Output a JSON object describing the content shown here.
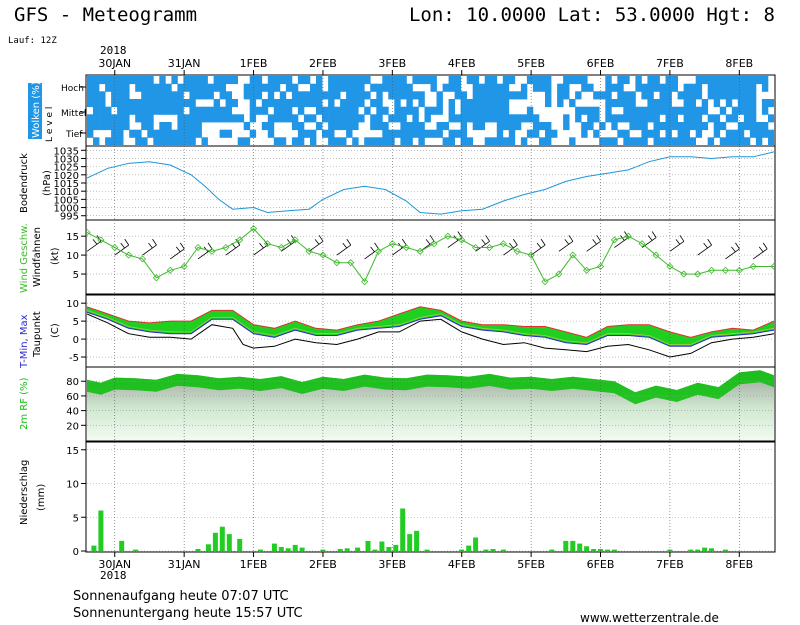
{
  "header": {
    "title": "GFS - Meteogramm",
    "coords": "Lon: 10.0000 Lat: 53.0000 Hgt: 8",
    "run": "Lauf: 12Z"
  },
  "footer": {
    "sunrise": "Sonnenaufgang heute 07:07 UTC",
    "sunset": "Sonnenuntergang heute 15:57 UTC",
    "website": "www.wetterzentrale.de"
  },
  "colors": {
    "cloud": "#2196e6",
    "pressure": "#1e96d8",
    "wind": "#3dbb2a",
    "temp_max": "#e03030",
    "temp_min": "#2b2bd0",
    "temp_fill": "#20d020",
    "humidity": "#10c010",
    "precip": "#22cc22",
    "precip_conv": "#dd4040"
  },
  "chart_data": {
    "x_axis": {
      "labels": [
        "30JAN",
        "31JAN",
        "1FEB",
        "2FEB",
        "3FEB",
        "4FEB",
        "5FEB",
        "6FEB",
        "7FEB",
        "8FEB"
      ],
      "year": "2018",
      "unit": "days",
      "range": [
        29.6,
        39.5
      ]
    },
    "panels": [
      {
        "id": "clouds",
        "type": "heatmap",
        "ylabel": "Wolken (%)",
        "level_axis": "L e v e l",
        "levels": [
          "Hoch",
          "Mittel",
          "Tief"
        ],
        "note": "cloud cover by level; blue = cloudy"
      },
      {
        "id": "pressure",
        "type": "line",
        "ylabel": "Bodendruck",
        "unit": "(hPa)",
        "yticks": [
          995,
          1000,
          1005,
          1010,
          1015,
          1020,
          1025,
          1030,
          1035
        ],
        "ylim": [
          993,
          1037
        ],
        "series": [
          {
            "x": [
              29.6,
              29.9,
              30.2,
              30.5,
              30.8,
              31.1,
              31.3,
              31.5,
              31.7,
              32.0,
              32.2,
              32.5,
              32.8,
              33.0,
              33.3,
              33.6,
              33.9,
              34.2,
              34.4,
              34.7,
              35.0,
              35.3,
              35.6,
              35.9,
              36.2,
              36.5,
              36.8,
              37.1,
              37.4,
              37.7,
              38.0,
              38.3,
              38.6,
              38.9,
              39.2,
              39.5
            ],
            "y": [
              1018,
              1024,
              1027,
              1028,
              1026,
              1020,
              1013,
              1005,
              999,
              1000,
              997,
              998,
              999,
              1005,
              1011,
              1013,
              1011,
              1004,
              997,
              996,
              998,
              999,
              1004,
              1008,
              1011,
              1016,
              1019,
              1021,
              1023,
              1028,
              1031,
              1031,
              1030,
              1031,
              1031,
              1034
            ]
          }
        ]
      },
      {
        "id": "wind",
        "type": "line",
        "ylabel": "Wind Geschw.",
        "ylabel2": "Windfahnen",
        "unit": "(kt)",
        "yticks": [
          5,
          10,
          15
        ],
        "ylim": [
          0,
          19
        ],
        "series": [
          {
            "name": "Wind Geschw.",
            "x": [
              29.6,
              29.8,
              30.0,
              30.2,
              30.4,
              30.6,
              30.8,
              31.0,
              31.2,
              31.4,
              31.6,
              31.8,
              32.0,
              32.2,
              32.4,
              32.6,
              32.8,
              33.0,
              33.2,
              33.4,
              33.6,
              33.8,
              34.0,
              34.2,
              34.4,
              34.6,
              34.8,
              35.0,
              35.2,
              35.4,
              35.6,
              35.8,
              36.0,
              36.2,
              36.4,
              36.6,
              36.8,
              37.0,
              37.2,
              37.4,
              37.6,
              37.8,
              38.0,
              38.2,
              38.4,
              38.6,
              38.8,
              39.0,
              39.2,
              39.5
            ],
            "y": [
              16,
              14,
              12,
              10,
              9,
              4,
              6,
              7,
              12,
              11,
              12,
              14,
              17,
              13,
              12,
              14,
              11,
              10,
              8,
              8,
              3,
              11,
              13,
              12,
              11,
              13,
              15,
              14,
              12,
              12,
              13,
              11,
              10,
              3,
              5,
              10,
              6,
              7,
              14,
              15,
              13,
              10,
              7,
              5,
              5,
              6,
              6,
              6,
              7,
              7
            ]
          },
          {
            "name": "Windfahnen",
            "x": [
              29.6,
              30.0,
              30.4,
              30.8,
              31.2,
              31.6,
              32.0,
              32.4,
              32.8,
              33.2,
              33.6,
              34.0,
              34.4,
              34.8,
              35.2,
              35.6,
              36.0,
              36.4,
              36.8,
              37.2,
              37.6,
              38.0,
              38.4,
              38.8,
              39.2,
              39.5
            ],
            "y": [
              11,
              10,
              10,
              9,
              9,
              10,
              10,
              11,
              11,
              10,
              9,
              10,
              11,
              12,
              11,
              10,
              10,
              11,
              11,
              12,
              12,
              11,
              10,
              9,
              9,
              9
            ]
          }
        ]
      },
      {
        "id": "temperature",
        "type": "area",
        "ylabel": "T-Min, Max",
        "ylabel2": "Taupunkt",
        "unit": "(C)",
        "yticks": [
          -5,
          0,
          5,
          10
        ],
        "ylim": [
          -7.5,
          12
        ],
        "series": [
          {
            "name": "Max",
            "x": [
              29.6,
              29.9,
              30.2,
              30.5,
              30.8,
              31.1,
              31.4,
              31.7,
              32.0,
              32.3,
              32.6,
              32.9,
              33.2,
              33.5,
              33.8,
              34.1,
              34.4,
              34.7,
              35.0,
              35.3,
              35.6,
              35.9,
              36.2,
              36.5,
              36.8,
              37.1,
              37.4,
              37.7,
              38.0,
              38.3,
              38.6,
              38.9,
              39.2,
              39.5
            ],
            "y": [
              9,
              7,
              5,
              4.5,
              5,
              5,
              8,
              8,
              4,
              3,
              5,
              3,
              2.5,
              4,
              5,
              7,
              9,
              8,
              5,
              4,
              4,
              3.5,
              3.5,
              2,
              0.5,
              3.5,
              4,
              4,
              2,
              0.5,
              2,
              3,
              2.5,
              5
            ]
          },
          {
            "name": "T",
            "x": [
              29.6,
              29.9,
              30.2,
              30.5,
              30.8,
              31.1,
              31.4,
              31.7,
              32.0,
              32.3,
              32.6,
              32.9,
              33.2,
              33.5,
              33.8,
              34.1,
              34.4,
              34.7,
              35.0,
              35.3,
              35.6,
              35.9,
              36.2,
              36.5,
              36.8,
              37.1,
              37.4,
              37.7,
              38.0,
              38.3,
              38.6,
              38.9,
              39.2,
              39.5
            ],
            "y": [
              8,
              6,
              3.5,
              2.5,
              2,
              2,
              6,
              6,
              2,
              1,
              3,
              1.5,
              1.5,
              3,
              3.5,
              4,
              6,
              7,
              4,
              3,
              2.5,
              1.5,
              1,
              -0.5,
              -1,
              1.5,
              1.5,
              1,
              -1.5,
              -1.5,
              1,
              1.5,
              2,
              3
            ]
          },
          {
            "name": "Min",
            "x": [
              29.6,
              29.9,
              30.2,
              30.5,
              30.8,
              31.1,
              31.4,
              31.7,
              32.0,
              32.3,
              32.6,
              32.9,
              33.2,
              33.5,
              33.8,
              34.1,
              34.4,
              34.7,
              35.0,
              35.3,
              35.6,
              35.9,
              36.2,
              36.5,
              36.8,
              37.1,
              37.4,
              37.7,
              38.0,
              38.3,
              38.6,
              38.9,
              39.2,
              39.5
            ],
            "y": [
              7.5,
              5.5,
              3,
              2,
              1.5,
              1.5,
              5.5,
              5.5,
              1.5,
              0.5,
              2.5,
              1,
              1,
              2.5,
              3,
              3.5,
              5.5,
              6.5,
              3.5,
              2.5,
              2,
              1,
              0.5,
              -1,
              -1.5,
              1,
              1,
              0.5,
              -2,
              -2,
              0.5,
              1,
              1.5,
              2.5
            ]
          },
          {
            "name": "Taupunkt",
            "x": [
              29.6,
              29.9,
              30.2,
              30.5,
              30.8,
              31.1,
              31.4,
              31.7,
              31.85,
              32.0,
              32.3,
              32.6,
              32.9,
              33.2,
              33.5,
              33.8,
              34.1,
              34.4,
              34.7,
              35.0,
              35.3,
              35.6,
              35.9,
              36.2,
              36.5,
              36.8,
              37.1,
              37.4,
              37.7,
              38.0,
              38.3,
              38.6,
              38.9,
              39.2,
              39.5
            ],
            "y": [
              7,
              4.5,
              1.5,
              0.5,
              0.5,
              0,
              4,
              3,
              -1.5,
              -2.5,
              -2,
              0,
              -1,
              -1.5,
              0,
              2,
              2,
              5,
              5.5,
              2,
              0,
              -1.5,
              -1,
              -2.5,
              -3,
              -3.5,
              -2,
              -1.5,
              -3,
              -5,
              -4,
              -1,
              0,
              0.5,
              1.5
            ]
          }
        ]
      },
      {
        "id": "humidity",
        "type": "area",
        "ylabel": "2m RF (%)",
        "yticks": [
          20,
          40,
          60,
          80
        ],
        "ylim": [
          0,
          98
        ],
        "series": [
          {
            "name": "2m RF (%)",
            "x": [
              29.6,
              29.8,
              30.0,
              30.3,
              30.6,
              30.9,
              31.2,
              31.5,
              31.8,
              32.1,
              32.4,
              32.7,
              33.0,
              33.3,
              33.6,
              33.9,
              34.2,
              34.5,
              34.8,
              35.1,
              35.4,
              35.7,
              36.0,
              36.3,
              36.6,
              36.9,
              37.2,
              37.5,
              37.8,
              38.1,
              38.4,
              38.7,
              39.0,
              39.3,
              39.5
            ],
            "y": [
              82,
              78,
              85,
              84,
              82,
              90,
              88,
              84,
              86,
              83,
              87,
              79,
              86,
              83,
              89,
              85,
              84,
              89,
              88,
              86,
              90,
              85,
              86,
              83,
              86,
              83,
              80,
              65,
              74,
              68,
              78,
              72,
              92,
              95,
              88
            ]
          }
        ]
      },
      {
        "id": "precip",
        "type": "bar",
        "ylabel": "Niederschlag",
        "unit": "(mm)",
        "yticks": [
          0,
          5,
          10,
          15
        ],
        "ylim": [
          0,
          16
        ],
        "series": [
          {
            "name": "Niederschlag",
            "x": [
              29.7,
              29.8,
              30.1,
              30.3,
              31.2,
              31.35,
              31.45,
              31.55,
              31.65,
              31.8,
              32.1,
              32.3,
              32.4,
              32.5,
              32.6,
              32.7,
              33.0,
              33.25,
              33.35,
              33.5,
              33.65,
              33.75,
              33.85,
              33.95,
              34.05,
              34.15,
              34.25,
              34.35,
              34.5,
              35.0,
              35.1,
              35.2,
              35.35,
              35.45,
              35.6,
              36.3,
              36.5,
              36.6,
              36.7,
              36.8,
              36.9,
              37.0,
              37.1,
              37.2,
              38.0,
              38.3,
              38.4,
              38.5,
              38.6,
              38.8
            ],
            "y": [
              0.8,
              6.0,
              1.5,
              0.2,
              0.3,
              1.0,
              2.7,
              3.6,
              2.5,
              1.8,
              0.2,
              1.1,
              0.6,
              0.4,
              0.9,
              0.5,
              0.2,
              0.3,
              0.4,
              0.5,
              1.5,
              0.2,
              1.4,
              0.6,
              0.9,
              6.3,
              2.5,
              3.0,
              0.2,
              0.2,
              0.8,
              2.0,
              0.2,
              0.3,
              0.2,
              0.2,
              1.5,
              1.5,
              1.1,
              0.7,
              0.3,
              0.3,
              0.2,
              0.2,
              0.2,
              0.2,
              0.2,
              0.5,
              0.4,
              0.2
            ]
          }
        ]
      }
    ]
  }
}
